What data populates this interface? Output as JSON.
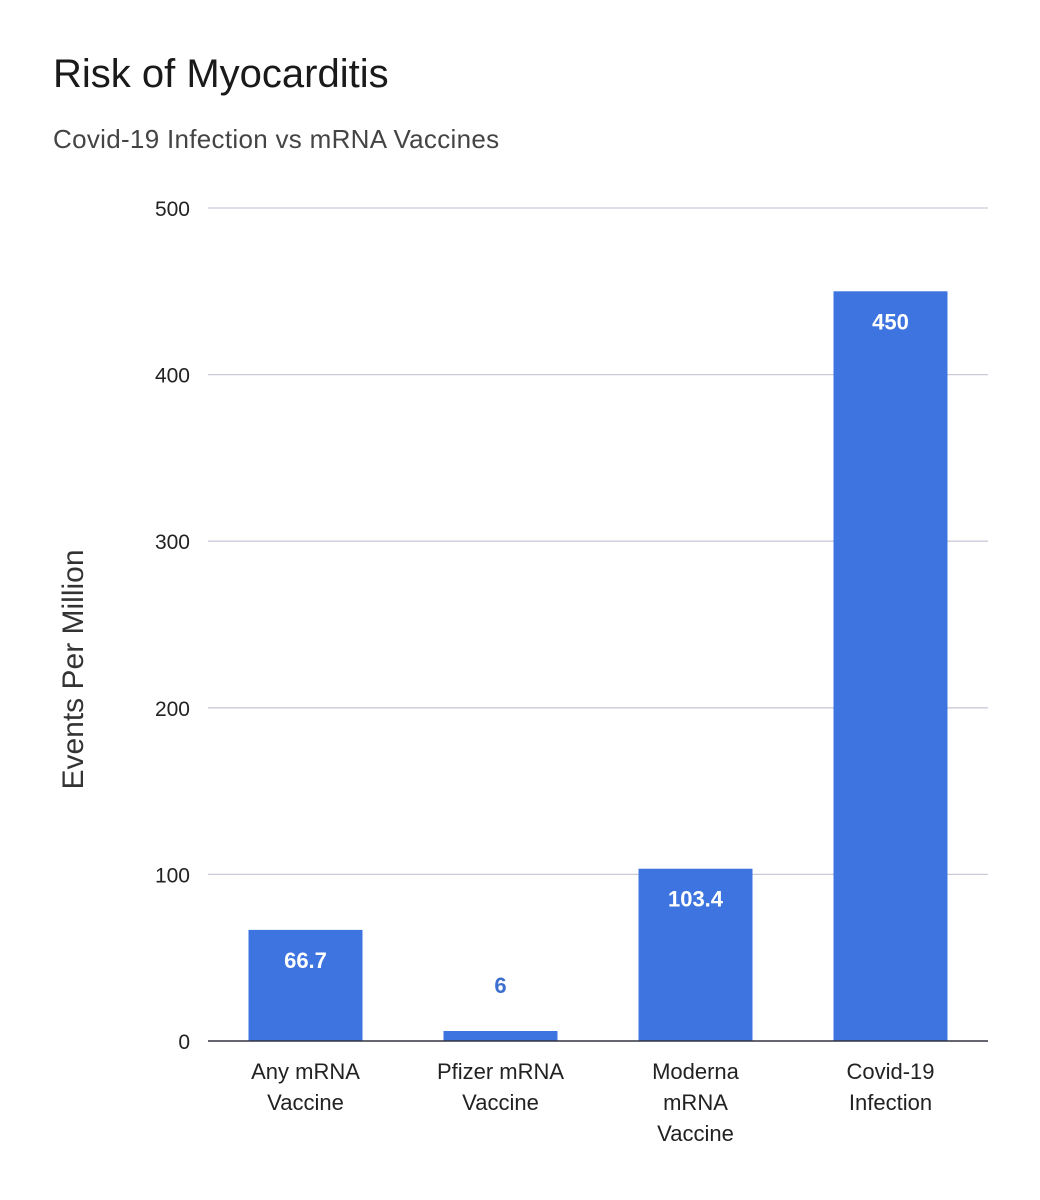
{
  "chart_data": {
    "type": "bar",
    "title": "Risk of Myocarditis",
    "subtitle": "Covid-19 Infection vs mRNA Vaccines",
    "xlabel": "",
    "ylabel": "Events Per Million",
    "categories": [
      [
        "Any mRNA",
        "Vaccine"
      ],
      [
        "Pfizer mRNA",
        "Vaccine"
      ],
      [
        "Moderna",
        "mRNA",
        "Vaccine"
      ],
      [
        "Covid-19",
        "Infection"
      ]
    ],
    "values": [
      66.7,
      6,
      103.4,
      450
    ],
    "data_labels": [
      "66.7",
      "6",
      "103.4",
      "450"
    ],
    "ylim": [
      0,
      500
    ],
    "yticks": [
      0,
      100,
      200,
      300,
      400,
      500
    ],
    "grid": true,
    "legend": "none",
    "colors": {
      "bar": "#3d74e0",
      "label_inside": "#ffffff",
      "label_outside": "#3d6fcf",
      "grid": "#c9ccd8",
      "baseline": "#333340"
    }
  }
}
